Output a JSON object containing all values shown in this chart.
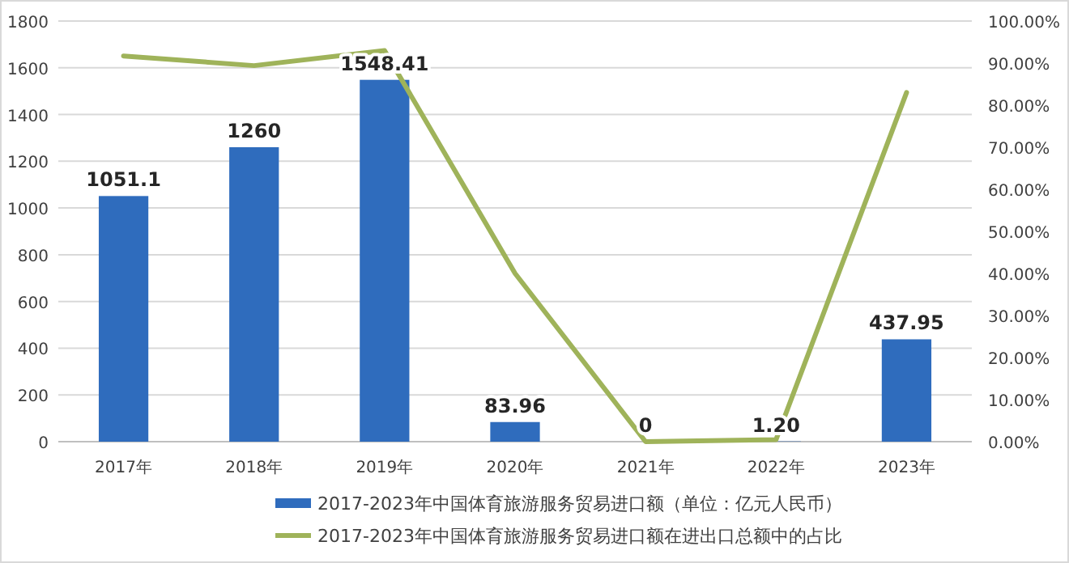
{
  "chart_data": {
    "type": "bar",
    "categories": [
      "2017年",
      "2018年",
      "2019年",
      "2020年",
      "2021年",
      "2022年",
      "2023年"
    ],
    "series": [
      {
        "name": "2017-2023年中国体育旅游服务贸易进口额（单位：亿元人民币）",
        "color": "#2f6cbd",
        "values": [
          1051.1,
          1260,
          1548.41,
          83.96,
          0,
          1.2,
          437.95
        ],
        "value_labels": [
          "1051.1",
          "1260",
          "1548.41",
          "83.96",
          "0",
          "1.20",
          "437.95"
        ]
      },
      {
        "name": "2017-2023年中国体育旅游服务贸易进口额在进出口总额中的占比",
        "type": "line",
        "axis": "y2",
        "color": "#9fb35a",
        "values": [
          91.7,
          89.4,
          93,
          40,
          0,
          0.5,
          83
        ]
      }
    ],
    "ylim": [
      0,
      1800
    ],
    "yticks": [
      0,
      200,
      400,
      600,
      800,
      1000,
      1200,
      1400,
      1600,
      1800
    ],
    "y2lim": [
      0,
      100
    ],
    "y2ticks": [
      {
        "value": 0,
        "label": "0.00%"
      },
      {
        "value": 10,
        "label": "10.00%"
      },
      {
        "value": 20,
        "label": "20.00%"
      },
      {
        "value": 30,
        "label": "30.00%"
      },
      {
        "value": 40,
        "label": "40.00%"
      },
      {
        "value": 50,
        "label": "50.00%"
      },
      {
        "value": 60,
        "label": "60.00%"
      },
      {
        "value": 70,
        "label": "70.00%"
      },
      {
        "value": 80,
        "label": "80.00%"
      },
      {
        "value": 90,
        "label": "90.00%"
      },
      {
        "value": 100,
        "label": "100.00%"
      }
    ],
    "grid": "y",
    "legend": "bottom"
  }
}
